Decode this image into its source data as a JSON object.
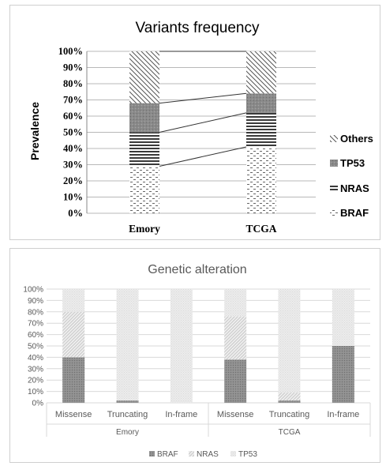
{
  "chart_data": [
    {
      "type": "bar",
      "stacked": true,
      "title": "Variants frequency",
      "ylabel": "Prevalence",
      "xlabel": "",
      "ylim": [
        0,
        100
      ],
      "yticks": [
        "0%",
        "10%",
        "20%",
        "30%",
        "40%",
        "50%",
        "60%",
        "70%",
        "80%",
        "90%",
        "100%"
      ],
      "categories": [
        "Emory",
        "TCGA"
      ],
      "series": [
        {
          "name": "BRAF",
          "values": [
            29,
            41
          ]
        },
        {
          "name": "NRAS",
          "values": [
            21,
            21
          ]
        },
        {
          "name": "TP53",
          "values": [
            18,
            12
          ]
        },
        {
          "name": "Others",
          "values": [
            32,
            26
          ]
        }
      ],
      "legend_order": [
        "Others",
        "TP53",
        "NRAS",
        "BRAF"
      ],
      "legend_position": "right",
      "grid": true,
      "connector_lines": true
    },
    {
      "type": "bar",
      "stacked": true,
      "title": "Genetic alteration",
      "xlabel": "",
      "ylabel": "",
      "ylim": [
        0,
        100
      ],
      "yticks": [
        "0%",
        "10%",
        "20%",
        "30%",
        "40%",
        "50%",
        "60%",
        "70%",
        "80%",
        "90%",
        "100%"
      ],
      "groups": [
        "Emory",
        "TCGA"
      ],
      "categories": [
        "Missense",
        "Truncating",
        "In-frame",
        "Missense",
        "Truncating",
        "In-frame"
      ],
      "series": [
        {
          "name": "BRAF",
          "values": [
            40,
            2,
            0,
            38,
            2,
            50
          ]
        },
        {
          "name": "NRAS",
          "values": [
            40,
            0,
            0,
            38,
            7,
            0
          ]
        },
        {
          "name": "TP53",
          "values": [
            20,
            98,
            100,
            24,
            91,
            50
          ]
        }
      ],
      "legend_position": "bottom",
      "grid": true
    }
  ]
}
